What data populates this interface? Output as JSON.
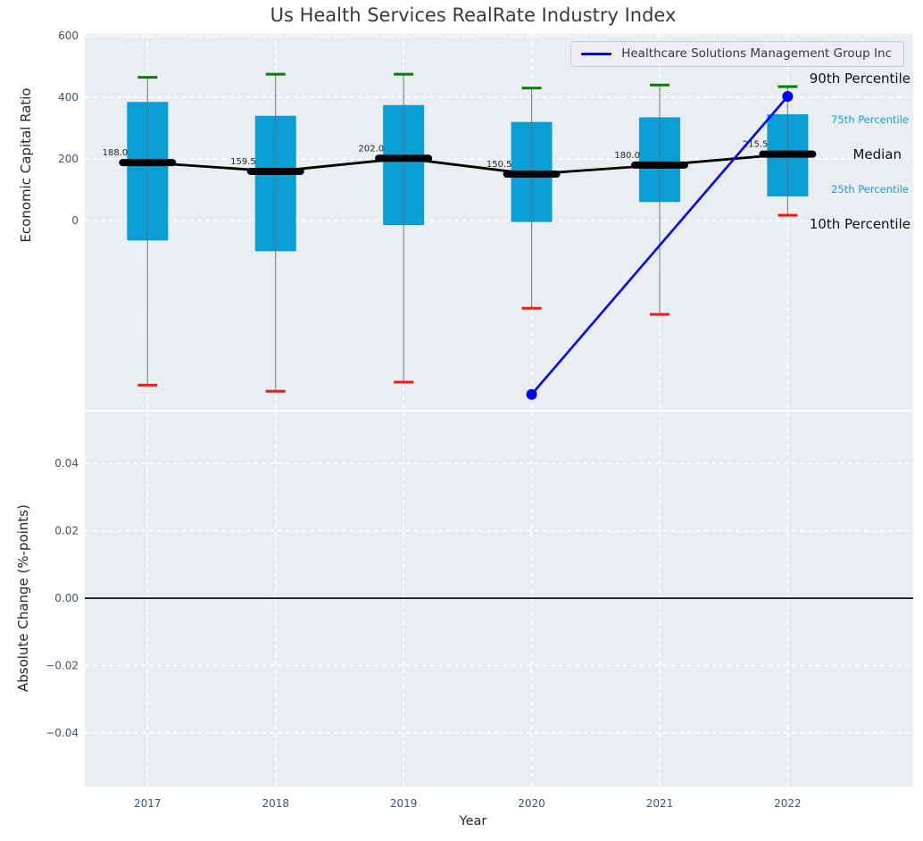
{
  "title": "Us Health Services RealRate Industry Index",
  "legend": {
    "series_label": "Healthcare Solutions Management Group Inc"
  },
  "colors": {
    "box_fill": "#0a9fd4",
    "p90_cap": "#008000",
    "p10_cap": "#ec1c1c",
    "median_line": "#000000",
    "series_line": "#0000ff",
    "axes_bg": "#eaeef0",
    "grid": "#ffffff",
    "tick_text": "#44546a",
    "whisker": "#6e6e6e",
    "accent_text": "#1a9fd0"
  },
  "chart_data": [
    {
      "type": "boxplot",
      "title": "Us Health Services RealRate Industry Index",
      "xlabel": "",
      "ylabel": "Economic Capital Ratio",
      "yticks": [
        600,
        400,
        200,
        0
      ],
      "ylim": [
        -615,
        606
      ],
      "grid": true,
      "legend_position": "upper right",
      "categories": [
        "2017",
        "2018",
        "2019",
        "2020",
        "2021",
        "2022"
      ],
      "percentile_labels": {
        "p90": "90th Percentile",
        "p75": "75th Percentile",
        "median": "Median",
        "p25": "25th Percentile",
        "p10": "10th Percentile"
      },
      "boxes": [
        {
          "year": "2017",
          "p10": -535,
          "p25": -65,
          "median": 188.0,
          "p75": 385,
          "p90": 465
        },
        {
          "year": "2018",
          "p10": -555,
          "p25": -100,
          "median": 159.5,
          "p75": 340,
          "p90": 475
        },
        {
          "year": "2019",
          "p10": -525,
          "p25": -15,
          "median": 202.0,
          "p75": 375,
          "p90": 475
        },
        {
          "year": "2020",
          "p10": -285,
          "p25": -5,
          "median": 150.5,
          "p75": 320,
          "p90": 430
        },
        {
          "year": "2021",
          "p10": -305,
          "p25": 60,
          "median": 180.0,
          "p75": 335,
          "p90": 440
        },
        {
          "year": "2022",
          "p10": 17,
          "p25": 78,
          "median": 215.5,
          "p75": 345,
          "p90": 435
        }
      ],
      "median_labels": [
        "188.0",
        "159.5",
        "202.0",
        "150.5",
        "180.0",
        "215.5"
      ],
      "series": [
        {
          "name": "Healthcare Solutions Management Group Inc",
          "x": [
            "2020",
            "2022"
          ],
          "y": [
            -565,
            403
          ],
          "color": "#0000ff",
          "marker": "circle"
        }
      ]
    },
    {
      "type": "line",
      "title": "",
      "xlabel": "Year",
      "ylabel": "Absolute Change (%-points)",
      "yticks": [
        0.04,
        0.02,
        0.0,
        -0.02,
        -0.04
      ],
      "ylim": [
        -0.0559,
        0.0554
      ],
      "grid": true,
      "zero_line": true,
      "categories": [
        "2017",
        "2018",
        "2019",
        "2020",
        "2021",
        "2022"
      ],
      "series": []
    }
  ]
}
